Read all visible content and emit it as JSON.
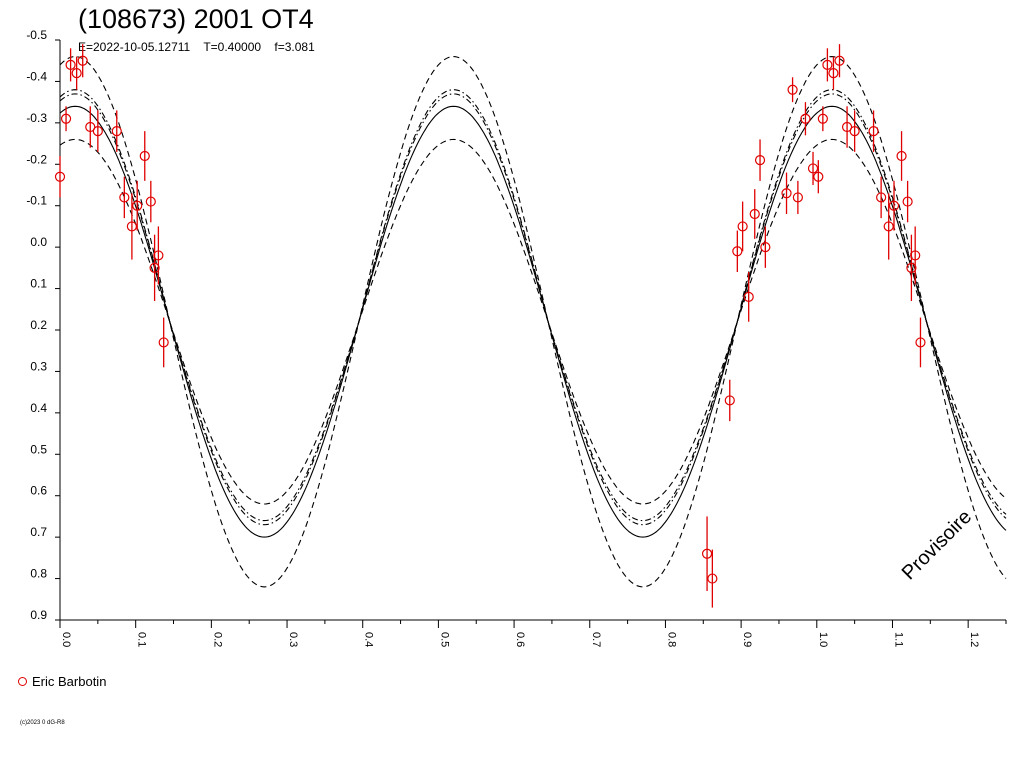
{
  "header": {
    "title": "(108673) 2001 OT4",
    "params": "E=2022-10-05.12711    T=0.40000    f=3.081"
  },
  "legend": {
    "observer": "Eric Barbotin"
  },
  "footer": {
    "copyright": "(c)2023 0 dG-R8"
  },
  "watermark": "Provisoire",
  "chart_data": {
    "type": "scatter",
    "title": "(108673) 2001 OT4",
    "xlim": [
      0,
      1.25
    ],
    "ylim": [
      -0.5,
      0.9
    ],
    "y_inverted": true,
    "x_ticks": [
      "0.0",
      "0.1",
      "0.2",
      "0.3",
      "0.4",
      "0.5",
      "0.6",
      "0.7",
      "0.8",
      "0.9",
      "1.0",
      "1.1",
      "1.2"
    ],
    "y_ticks": [
      "-0.5",
      "-0.4",
      "-0.3",
      "-0.2",
      "-0.1",
      "0.0",
      "0.1",
      "0.2",
      "0.3",
      "0.4",
      "0.5",
      "0.6",
      "0.7",
      "0.8",
      "0.9"
    ],
    "model": {
      "mean": 0.18,
      "center_amplitude": 0.52,
      "phase_max": 0.27,
      "period_fraction": 0.5,
      "envelope_inner": [
        0.03,
        0.04
      ],
      "envelope_outer": [
        -0.08,
        0.12
      ]
    },
    "series": [
      {
        "name": "Eric Barbotin",
        "color": "#e00000",
        "points": [
          {
            "x": 0.0,
            "y": -0.17,
            "e": 0.05
          },
          {
            "x": 0.008,
            "y": -0.31,
            "e": 0.03
          },
          {
            "x": 0.014,
            "y": -0.44,
            "e": 0.04
          },
          {
            "x": 0.022,
            "y": -0.42,
            "e": 0.04
          },
          {
            "x": 0.03,
            "y": -0.45,
            "e": 0.04
          },
          {
            "x": 0.04,
            "y": -0.29,
            "e": 0.05
          },
          {
            "x": 0.05,
            "y": -0.28,
            "e": 0.05
          },
          {
            "x": 0.075,
            "y": -0.28,
            "e": 0.05
          },
          {
            "x": 0.085,
            "y": -0.12,
            "e": 0.05
          },
          {
            "x": 0.095,
            "y": -0.05,
            "e": 0.08
          },
          {
            "x": 0.102,
            "y": -0.1,
            "e": 0.06
          },
          {
            "x": 0.112,
            "y": -0.22,
            "e": 0.06
          },
          {
            "x": 0.12,
            "y": -0.11,
            "e": 0.05
          },
          {
            "x": 0.125,
            "y": 0.05,
            "e": 0.08
          },
          {
            "x": 0.13,
            "y": 0.02,
            "e": 0.07
          },
          {
            "x": 0.137,
            "y": 0.23,
            "e": 0.06
          },
          {
            "x": 0.855,
            "y": 0.74,
            "e": 0.09
          },
          {
            "x": 0.862,
            "y": 0.8,
            "e": 0.07
          },
          {
            "x": 0.885,
            "y": 0.37,
            "e": 0.05
          },
          {
            "x": 0.895,
            "y": 0.01,
            "e": 0.05
          },
          {
            "x": 0.902,
            "y": -0.05,
            "e": 0.06
          },
          {
            "x": 0.91,
            "y": 0.12,
            "e": 0.06
          },
          {
            "x": 0.918,
            "y": -0.08,
            "e": 0.06
          },
          {
            "x": 0.925,
            "y": -0.21,
            "e": 0.05
          },
          {
            "x": 0.932,
            "y": 0.0,
            "e": 0.05
          },
          {
            "x": 0.96,
            "y": -0.13,
            "e": 0.05
          },
          {
            "x": 0.968,
            "y": -0.38,
            "e": 0.03
          },
          {
            "x": 0.975,
            "y": -0.12,
            "e": 0.04
          },
          {
            "x": 0.985,
            "y": -0.31,
            "e": 0.04
          },
          {
            "x": 0.995,
            "y": -0.19,
            "e": 0.04
          },
          {
            "x": 1.002,
            "y": -0.17,
            "e": 0.04
          },
          {
            "x": 1.008,
            "y": -0.31,
            "e": 0.03
          },
          {
            "x": 1.014,
            "y": -0.44,
            "e": 0.04
          },
          {
            "x": 1.022,
            "y": -0.42,
            "e": 0.04
          },
          {
            "x": 1.03,
            "y": -0.45,
            "e": 0.04
          },
          {
            "x": 1.04,
            "y": -0.29,
            "e": 0.05
          },
          {
            "x": 1.05,
            "y": -0.28,
            "e": 0.05
          },
          {
            "x": 1.075,
            "y": -0.28,
            "e": 0.05
          },
          {
            "x": 1.085,
            "y": -0.12,
            "e": 0.05
          },
          {
            "x": 1.095,
            "y": -0.05,
            "e": 0.08
          },
          {
            "x": 1.102,
            "y": -0.1,
            "e": 0.06
          },
          {
            "x": 1.112,
            "y": -0.22,
            "e": 0.06
          },
          {
            "x": 1.12,
            "y": -0.11,
            "e": 0.05
          },
          {
            "x": 1.125,
            "y": 0.05,
            "e": 0.08
          },
          {
            "x": 1.13,
            "y": 0.02,
            "e": 0.07
          },
          {
            "x": 1.137,
            "y": 0.23,
            "e": 0.06
          }
        ]
      }
    ]
  }
}
